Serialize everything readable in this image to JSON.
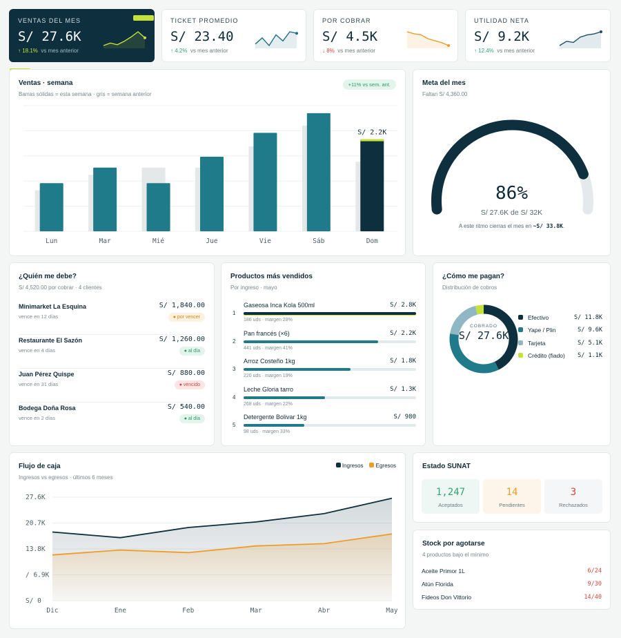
{
  "kpis": [
    {
      "label": "VENTAS DEL MES",
      "value": "S/ 27.6K",
      "delta": "↑ 18.1%",
      "delta_dir": "up",
      "delta_text": "vs mes anterior",
      "spark": [
        6,
        9,
        7,
        11,
        16,
        22,
        15
      ],
      "color": "#c6e13b"
    },
    {
      "label": "TICKET PROMEDIO",
      "value": "S/ 23.40",
      "delta": "↑ 4.2%",
      "delta_dir": "up",
      "delta_text": "vs mes anterior",
      "spark": [
        10,
        14,
        9,
        16,
        12,
        18,
        17
      ],
      "color": "#1f6d82"
    },
    {
      "label": "POR COBRAR",
      "value": "S/ 4.5K",
      "delta": "↓ 8%",
      "delta_dir": "down",
      "delta_text": "vs mes anterior",
      "spark": [
        20,
        18,
        17,
        13,
        11,
        9,
        6
      ],
      "color": "#ee9b27"
    },
    {
      "label": "UTILIDAD NETA",
      "value": "S/ 9.2K",
      "delta": "↑ 12.4%",
      "delta_dir": "up",
      "delta_text": "vs mes anterior",
      "spark": [
        6,
        10,
        9,
        14,
        16,
        17,
        19
      ],
      "color": "#1a4f67"
    }
  ],
  "weekly": {
    "title": "Ventas · semana",
    "subtitle": "Barras sólidas = esta semana · gris = semana anterior",
    "badge": "+11% vs sem. ant.",
    "highlight_label": "S/ 2.2K",
    "chart_data": {
      "type": "bar",
      "categories": [
        "Lun",
        "Mar",
        "Mié",
        "Jue",
        "Vie",
        "Sáb",
        "Dom"
      ],
      "series": [
        {
          "values": [
            1.15,
            1.52,
            1.15,
            1.78,
            2.35,
            2.82,
            2.2
          ]
        },
        {
          "values": [
            0.98,
            1.35,
            1.52,
            1.52,
            2.03,
            2.52,
            1.66
          ]
        }
      ],
      "ylim": [
        0,
        3.0
      ],
      "highlight_index": 6,
      "grid": true
    }
  },
  "goal": {
    "title": "Meta del mes",
    "subtitle": "Faltan S/ 4,360.00",
    "percent": 86,
    "percent_label": "86%",
    "detail": "S/ 27.6K de S/ 32K",
    "projection_prefix": "A este ritmo cierras el mes en",
    "projection_value": "~S/ 33.8K",
    "projection_suffix": "."
  },
  "debtors": {
    "title": "¿Quién me debe?",
    "subtitle": "S/ 4,520.00 por cobrar · 4 clientes",
    "items": [
      {
        "name": "Minimarket La Esquina",
        "due": "vence en 12 días",
        "amount": "S/ 1,840.00",
        "status": "● por vencer",
        "kind": "warn"
      },
      {
        "name": "Restaurante El Sazón",
        "due": "vence en 4 días",
        "amount": "S/ 1,260.00",
        "status": "● al día",
        "kind": "ok"
      },
      {
        "name": "Juan Pérez Quispe",
        "due": "vence en 31 días",
        "amount": "S/ 880.00",
        "status": "● vencido",
        "kind": "bad"
      },
      {
        "name": "Bodega Doña Rosa",
        "due": "vence en 2 días",
        "amount": "S/ 540.00",
        "status": "● al día",
        "kind": "ok"
      }
    ]
  },
  "products": {
    "title": "Productos más vendidos",
    "subtitle": "Por ingreso · mayo",
    "items": [
      {
        "rank": "1",
        "name": "Gaseosa Inca Kola 500ml",
        "value": "S/ 2.8K",
        "share": 1.0,
        "meta": "186 uds · margen 28%",
        "color": "#0e2f3d"
      },
      {
        "rank": "2",
        "name": "Pan francés (×6)",
        "value": "S/ 2.2K",
        "share": 0.78,
        "meta": "441 uds · margen 41%",
        "color": "#1f7a8a"
      },
      {
        "rank": "3",
        "name": "Arroz Costeño 1kg",
        "value": "S/ 1.8K",
        "share": 0.62,
        "meta": "220 uds · margen 19%",
        "color": "#1f7a8a"
      },
      {
        "rank": "4",
        "name": "Leche Gloria tarro",
        "value": "S/ 1.3K",
        "share": 0.47,
        "meta": "268 uds · margen 22%",
        "color": "#1f7a8a"
      },
      {
        "rank": "5",
        "name": "Detergente Bolivar 1kg",
        "value": "S/ 980",
        "share": 0.35,
        "meta": "98 uds · margen 33%",
        "color": "#1f7a8a"
      }
    ]
  },
  "payments": {
    "title": "¿Cómo me pagan?",
    "subtitle": "Distribución de cobros",
    "center_label": "COBRADO",
    "center_value": "S/ 27.6K",
    "chart_data": {
      "type": "pie",
      "categories": [
        "Efectivo",
        "Yape / Plin",
        "Tarjeta",
        "Crédito (fiado)"
      ],
      "values": [
        11.8,
        9.6,
        5.1,
        1.1
      ],
      "value_labels": [
        "S/ 11.8K",
        "S/ 9.6K",
        "S/ 5.1K",
        "S/ 1.1K"
      ],
      "colors": [
        "#0e2f3d",
        "#1f7a8a",
        "#8fb8c4",
        "#c6e13b"
      ]
    }
  },
  "cashflow": {
    "title": "Flujo de caja",
    "subtitle": "Ingresos vs egresos · últimos 6 meses",
    "chart_data": {
      "type": "area",
      "x": [
        "Dic",
        "Ene",
        "Feb",
        "Mar",
        "Abr",
        "May"
      ],
      "series": [
        {
          "name": "Ingresos",
          "values": [
            18.3,
            16.8,
            19.5,
            21.0,
            23.2,
            27.3
          ],
          "color": "#0e2f3d"
        },
        {
          "name": "Egresos",
          "values": [
            12.2,
            13.5,
            12.8,
            14.6,
            15.2,
            17.8
          ],
          "color": "#ee9b27"
        }
      ],
      "yticks": [
        "S/ 0",
        "/ 6.9K",
        "13.8K",
        "20.7K",
        "27.6K"
      ],
      "ylim": [
        0,
        27.6
      ],
      "legend": "top-right"
    }
  },
  "sunat": {
    "title": "Estado SUNAT",
    "items": [
      {
        "value": "1,247",
        "label": "Aceptados",
        "color": "#2fa676",
        "bg": "#eef7f3"
      },
      {
        "value": "14",
        "label": "Pendientes",
        "color": "#ee9b27",
        "bg": "#fdf5ea"
      },
      {
        "value": "3",
        "label": "Rechazados",
        "color": "#d8453e",
        "bg": "#f5f6f7"
      }
    ]
  },
  "stock": {
    "title": "Stock por agotarse",
    "subtitle": "4 productos bajo el mínimo",
    "items": [
      {
        "name": "Aceite Primor 1L",
        "value": "6/24"
      },
      {
        "name": "Atún Florida",
        "value": "9/30"
      },
      {
        "name": "Fideos Don Vittorio",
        "value": "14/40"
      }
    ]
  }
}
